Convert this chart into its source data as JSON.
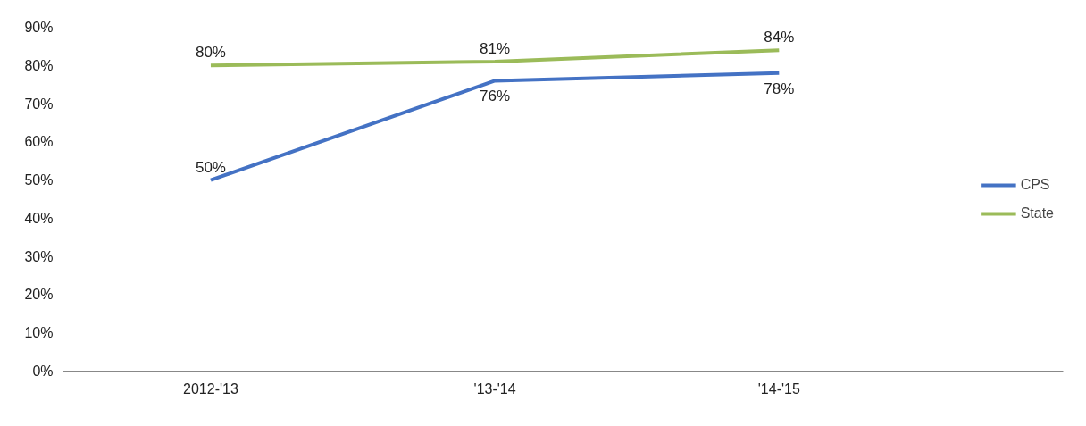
{
  "chart_data": {
    "type": "line",
    "categories": [
      "2012-'13",
      "'13-'14",
      "'14-'15"
    ],
    "series": [
      {
        "name": "CPS",
        "color": "#4472c4",
        "values": [
          50,
          76,
          78
        ],
        "value_labels": [
          "50%",
          "76%",
          "78%"
        ]
      },
      {
        "name": "State",
        "color": "#9bbb59",
        "values": [
          80,
          81,
          84
        ],
        "value_labels": [
          "80%",
          "81%",
          "84%"
        ]
      }
    ],
    "ylim": [
      0,
      90
    ],
    "yticks": [
      {
        "value": 0,
        "label": "0%"
      },
      {
        "value": 10,
        "label": "10%"
      },
      {
        "value": 20,
        "label": "20%"
      },
      {
        "value": 30,
        "label": "30%"
      },
      {
        "value": 40,
        "label": "40%"
      },
      {
        "value": 50,
        "label": "50%"
      },
      {
        "value": 60,
        "label": "60%"
      },
      {
        "value": 70,
        "label": "70%"
      },
      {
        "value": 80,
        "label": "80%"
      },
      {
        "value": 90,
        "label": "90%"
      }
    ],
    "data_labels": true,
    "grid": false,
    "legend": "right",
    "marker": "none",
    "line_style": "solid"
  }
}
